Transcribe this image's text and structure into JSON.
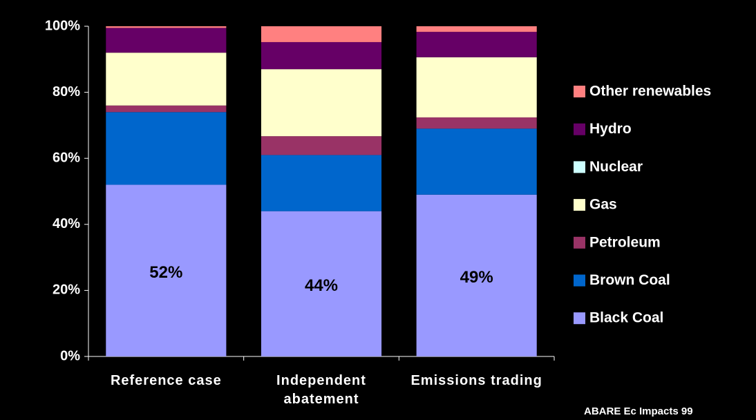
{
  "chart_data": {
    "type": "stacked_bar",
    "categories": [
      "Reference case",
      "Independent abatement",
      "Emissions trading"
    ],
    "series": [
      {
        "name": "Black Coal",
        "color": "#9999ff",
        "values": [
          52,
          44,
          49
        ],
        "value_labels": [
          "52%",
          "44%",
          "49%"
        ]
      },
      {
        "name": "Brown Coal",
        "color": "#0066cc",
        "values": [
          22,
          17,
          20
        ]
      },
      {
        "name": "Petroleum",
        "color": "#993366",
        "values": [
          2,
          5.7,
          3.4
        ]
      },
      {
        "name": "Gas",
        "color": "#ffffcc",
        "values": [
          16,
          20.3,
          18.2
        ]
      },
      {
        "name": "Nuclear",
        "color": "#ccffff",
        "values": [
          0,
          0,
          0
        ]
      },
      {
        "name": "Hydro",
        "color": "#660066",
        "values": [
          7.5,
          8.2,
          7.7
        ]
      },
      {
        "name": "Other renewables",
        "color": "#ff8080",
        "values": [
          0.5,
          4.8,
          1.7
        ]
      }
    ],
    "ylim": [
      0,
      100
    ],
    "yticks": [
      {
        "value": 0,
        "label": "0%"
      },
      {
        "value": 20,
        "label": "20%"
      },
      {
        "value": 40,
        "label": "40%"
      },
      {
        "value": 60,
        "label": "60%"
      },
      {
        "value": 80,
        "label": "80%"
      },
      {
        "value": 100,
        "label": "100%"
      }
    ],
    "legend": "right",
    "annotation": "ABARE Ec Impacts 99"
  }
}
